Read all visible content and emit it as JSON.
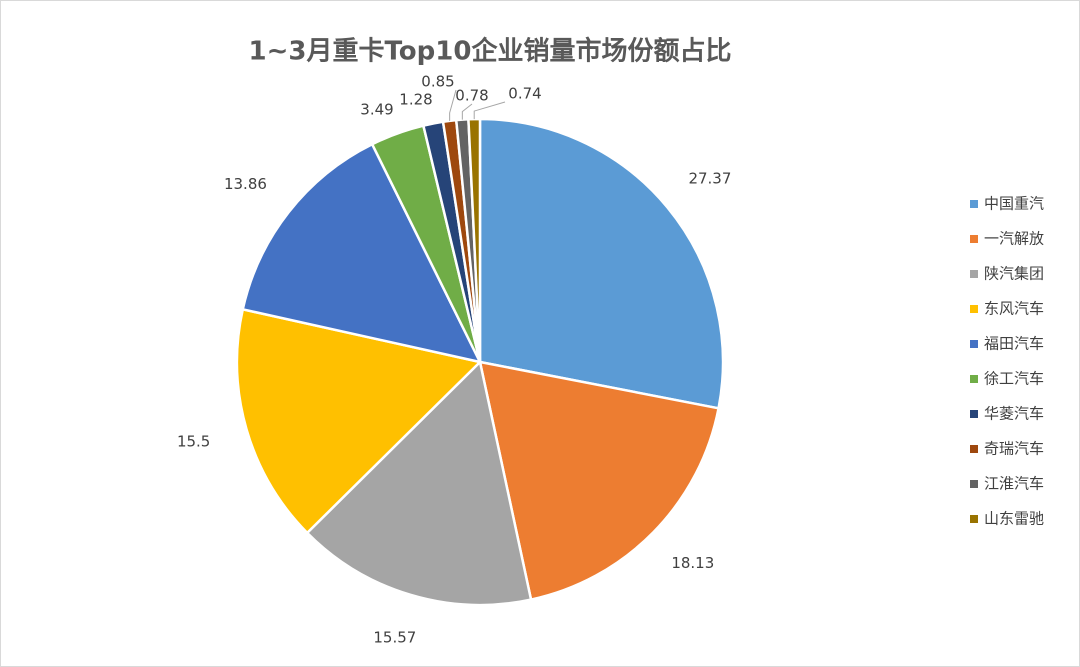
{
  "chart_data": {
    "type": "pie",
    "title": "1~3月重卡Top10企业销量市场份额占比",
    "categories": [
      "中国重汽",
      "一汽解放",
      "陕汽集团",
      "东风汽车",
      "福田汽车",
      "徐工汽车",
      "华菱汽车",
      "奇瑞汽车",
      "江淮汽车",
      "山东雷驰"
    ],
    "values": [
      27.37,
      18.13,
      15.57,
      15.5,
      13.86,
      3.49,
      1.28,
      0.85,
      0.78,
      0.74
    ],
    "colors": [
      "#5b9bd5",
      "#ed7d31",
      "#a5a5a5",
      "#ffc000",
      "#4472c4",
      "#70ad47",
      "#264478",
      "#9e480e",
      "#636363",
      "#997300"
    ],
    "legend": "right"
  }
}
